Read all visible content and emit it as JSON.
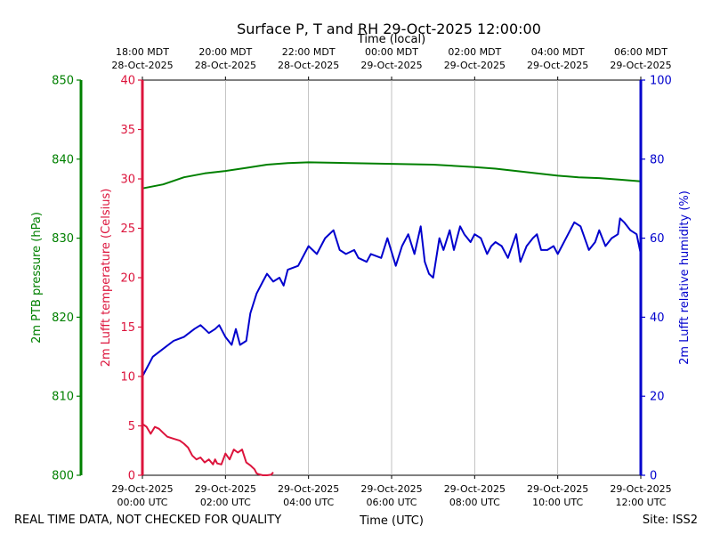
{
  "chart_data": {
    "type": "line",
    "title": "Surface P, T and RH 29-Oct-2025 12:00:00",
    "xlabel_bottom": "Time (UTC)",
    "xlabel_top": "Time (local)",
    "footer_left": "REAL TIME DATA, NOT CHECKED FOR QUALITY",
    "footer_right": "Site: ISS2",
    "x_range_utc": [
      "2025-10-29T00:00",
      "2025-10-29T12:00"
    ],
    "grid": "vertical",
    "bottom_ticks": [
      {
        "date": "29-Oct-2025",
        "time": "00:00 UTC"
      },
      {
        "date": "29-Oct-2025",
        "time": "02:00 UTC"
      },
      {
        "date": "29-Oct-2025",
        "time": "04:00 UTC"
      },
      {
        "date": "29-Oct-2025",
        "time": "06:00 UTC"
      },
      {
        "date": "29-Oct-2025",
        "time": "08:00 UTC"
      },
      {
        "date": "29-Oct-2025",
        "time": "10:00 UTC"
      },
      {
        "date": "29-Oct-2025",
        "time": "12:00 UTC"
      }
    ],
    "top_ticks": [
      {
        "time": "18:00 MDT",
        "date": "28-Oct-2025"
      },
      {
        "time": "20:00 MDT",
        "date": "28-Oct-2025"
      },
      {
        "time": "22:00 MDT",
        "date": "28-Oct-2025"
      },
      {
        "time": "00:00 MDT",
        "date": "29-Oct-2025"
      },
      {
        "time": "02:00 MDT",
        "date": "29-Oct-2025"
      },
      {
        "time": "04:00 MDT",
        "date": "29-Oct-2025"
      },
      {
        "time": "06:00 MDT",
        "date": "29-Oct-2025"
      }
    ],
    "axes": {
      "pressure": {
        "label": "2m PTB pressure (hPa)",
        "color": "#008000",
        "ylim": [
          800,
          850
        ],
        "ticks": [
          800,
          810,
          820,
          830,
          840,
          850
        ]
      },
      "temperature": {
        "label": "2m Lufft temperature (Celsius)",
        "color": "#dc143c",
        "ylim": [
          0,
          40
        ],
        "ticks": [
          0,
          5,
          10,
          15,
          20,
          25,
          30,
          35,
          40
        ]
      },
      "humidity": {
        "label": "2m Lufft relative humidity (%)",
        "color": "#0000cd",
        "ylim": [
          0,
          100
        ],
        "ticks": [
          0,
          20,
          40,
          60,
          80,
          100
        ]
      }
    },
    "series": [
      {
        "axis": "pressure",
        "x_hours_utc": [
          0,
          0.5,
          1,
          1.5,
          2,
          2.5,
          3,
          3.5,
          4,
          5,
          6,
          7,
          8,
          8.5,
          9,
          9.5,
          10,
          10.5,
          11,
          11.5,
          12
        ],
        "values": [
          836.3,
          836.8,
          837.7,
          838.2,
          838.5,
          838.9,
          839.3,
          839.5,
          839.6,
          839.5,
          839.4,
          839.3,
          839.0,
          838.8,
          838.5,
          838.2,
          837.9,
          837.7,
          837.6,
          837.4,
          837.2
        ]
      },
      {
        "axis": "temperature",
        "x_hours_utc": [
          0,
          0.1,
          0.2,
          0.3,
          0.4,
          0.5,
          0.6,
          0.75,
          0.9,
          1.0,
          1.1,
          1.2,
          1.3,
          1.4,
          1.5,
          1.6,
          1.7,
          1.75,
          1.8,
          1.9,
          2.0,
          2.1,
          2.2,
          2.3,
          2.4,
          2.5,
          2.6,
          2.7,
          2.75,
          2.8,
          2.9,
          3.0,
          3.1,
          3.15
        ],
        "values": [
          5.2,
          4.9,
          4.2,
          4.9,
          4.7,
          4.3,
          3.9,
          3.7,
          3.5,
          3.2,
          2.8,
          2.0,
          1.6,
          1.8,
          1.3,
          1.6,
          1.1,
          1.6,
          1.2,
          1.1,
          2.2,
          1.6,
          2.6,
          2.3,
          2.6,
          1.3,
          1.0,
          0.6,
          0.2,
          0.1,
          0.0,
          0.0,
          0.05,
          0.3
        ]
      },
      {
        "axis": "humidity",
        "x_hours_utc": [
          0,
          0.25,
          0.5,
          0.75,
          1.0,
          1.25,
          1.4,
          1.5,
          1.6,
          1.75,
          1.85,
          2.0,
          2.15,
          2.25,
          2.35,
          2.5,
          2.6,
          2.75,
          2.9,
          3.0,
          3.15,
          3.3,
          3.4,
          3.5,
          3.75,
          4.0,
          4.2,
          4.4,
          4.6,
          4.75,
          4.9,
          5.1,
          5.2,
          5.4,
          5.5,
          5.75,
          5.9,
          6.1,
          6.25,
          6.4,
          6.55,
          6.7,
          6.8,
          6.9,
          7.0,
          7.15,
          7.25,
          7.4,
          7.5,
          7.65,
          7.75,
          7.9,
          8.0,
          8.15,
          8.3,
          8.4,
          8.5,
          8.65,
          8.8,
          9.0,
          9.1,
          9.25,
          9.4,
          9.5,
          9.6,
          9.75,
          9.9,
          10.0,
          10.15,
          10.25,
          10.4,
          10.55,
          10.75,
          10.9,
          11.0,
          11.15,
          11.3,
          11.45,
          11.5,
          11.6,
          11.75,
          11.9,
          12.0
        ],
        "values": [
          25,
          30,
          32,
          34,
          35,
          37,
          38,
          37,
          36,
          37,
          38,
          35,
          33,
          37,
          33,
          34,
          41,
          46,
          49,
          51,
          49,
          50,
          48,
          52,
          53,
          58,
          56,
          60,
          62,
          57,
          56,
          57,
          55,
          54,
          56,
          55,
          60,
          53,
          58,
          61,
          56,
          63,
          54,
          51,
          50,
          60,
          57,
          62,
          57,
          63,
          61,
          59,
          61,
          60,
          56,
          58,
          59,
          58,
          55,
          61,
          54,
          58,
          60,
          61,
          57,
          57,
          58,
          56,
          59,
          61,
          64,
          63,
          57,
          59,
          62,
          58,
          60,
          61,
          65,
          64,
          62,
          61,
          56
        ]
      }
    ]
  }
}
